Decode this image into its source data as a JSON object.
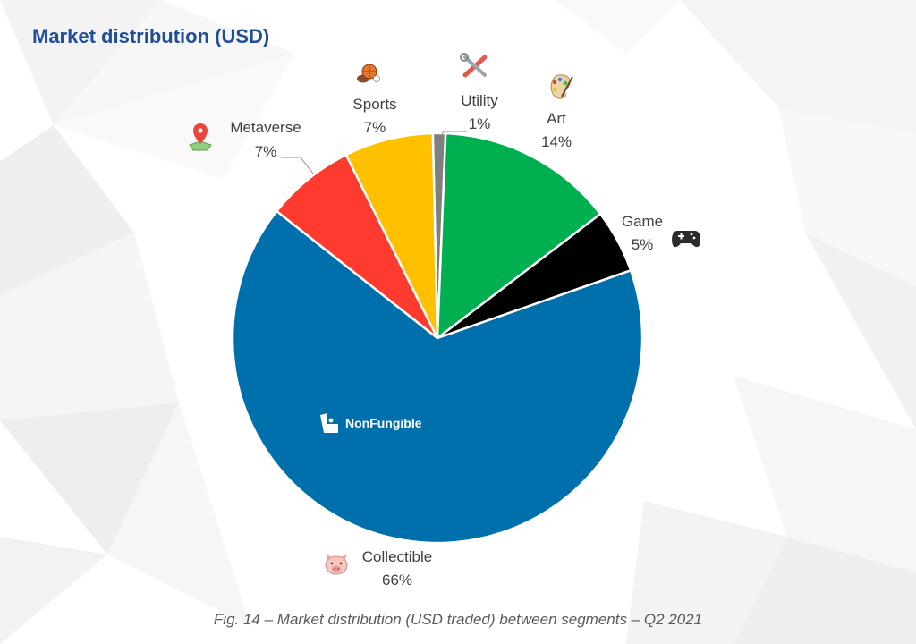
{
  "title": "Market distribution (USD)",
  "caption": "Fig. 14 – Market distribution (USD traded) between segments – Q2 2021",
  "watermark": "NonFungible",
  "chart_data": {
    "type": "pie",
    "title": "Market distribution (USD)",
    "unit": "%",
    "slices": [
      {
        "name": "Utility",
        "value": 1,
        "label": "1%",
        "color": "#7f7f7f",
        "icon": "tools-icon"
      },
      {
        "name": "Art",
        "value": 14,
        "label": "14%",
        "color": "#00b050",
        "icon": "palette-icon"
      },
      {
        "name": "Game",
        "value": 5,
        "label": "5%",
        "color": "#000000",
        "icon": "gamepad-icon"
      },
      {
        "name": "Collectible",
        "value": 66,
        "label": "66%",
        "color": "#0070ac",
        "icon": "pig-icon"
      },
      {
        "name": "Metaverse",
        "value": 7,
        "label": "7%",
        "color": "#ff3b30",
        "icon": "map-pin-icon"
      },
      {
        "name": "Sports",
        "value": 7,
        "label": "7%",
        "color": "#ffc000",
        "icon": "basketball-icon"
      }
    ]
  }
}
